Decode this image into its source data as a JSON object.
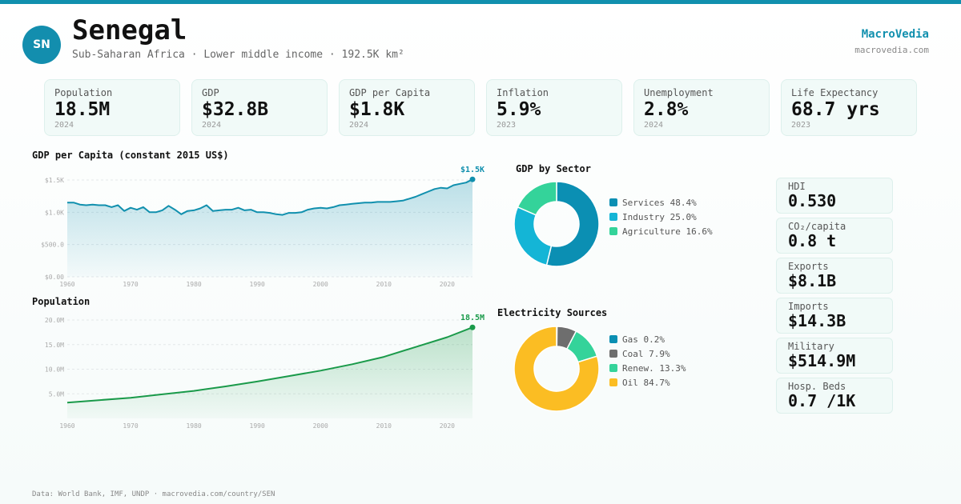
{
  "header": {
    "avatar": "SN",
    "title": "Senegal",
    "subtitle": "Sub-Saharan Africa · Lower middle income · 192.5K km²",
    "brand": "MacroVedia",
    "brand_url": "macrovedia.com",
    "accent_color": "#1190ae"
  },
  "stats": [
    {
      "label": "Population",
      "value": "18.5M",
      "year": "2024"
    },
    {
      "label": "GDP",
      "value": "$32.8B",
      "year": "2024"
    },
    {
      "label": "GDP per Capita",
      "value": "$1.8K",
      "year": "2024"
    },
    {
      "label": "Inflation",
      "value": "5.9%",
      "year": "2023"
    },
    {
      "label": "Unemployment",
      "value": "2.8%",
      "year": "2024"
    },
    {
      "label": "Life Expectancy",
      "value": "68.7 yrs",
      "year": "2023"
    }
  ],
  "side_stats": [
    {
      "label": "HDI",
      "value": "0.530"
    },
    {
      "label": "CO₂/capita",
      "value": "0.8 t"
    },
    {
      "label": "Exports",
      "value": "$8.1B"
    },
    {
      "label": "Imports",
      "value": "$14.3B"
    },
    {
      "label": "Military",
      "value": "$514.9M"
    },
    {
      "label": "Hosp. Beds",
      "value": "0.7 /1K"
    }
  ],
  "footer": "Data: World Bank, IMF, UNDP · macrovedia.com/country/SEN",
  "chart_data": [
    {
      "type": "area",
      "title": "GDP per Capita (constant 2015 US$)",
      "end_label": "$1.5K",
      "color": "#1190ae",
      "xlim": [
        1960,
        2024
      ],
      "ylim": [
        0,
        1500
      ],
      "x_ticks": [
        "1960",
        "1970",
        "1980",
        "1990",
        "2000",
        "2010",
        "2020"
      ],
      "y_ticks": [
        {
          "value": 0,
          "label": "$0.00"
        },
        {
          "value": 500,
          "label": "$500.0"
        },
        {
          "value": 1000,
          "label": "$1.0K"
        },
        {
          "value": 1500,
          "label": "$1.5K"
        }
      ],
      "x": [
        1960,
        1961,
        1962,
        1963,
        1964,
        1965,
        1966,
        1967,
        1968,
        1969,
        1970,
        1971,
        1972,
        1973,
        1974,
        1975,
        1976,
        1977,
        1978,
        1979,
        1980,
        1981,
        1982,
        1983,
        1984,
        1985,
        1986,
        1987,
        1988,
        1989,
        1990,
        1991,
        1992,
        1993,
        1994,
        1995,
        1996,
        1997,
        1998,
        1999,
        2000,
        2001,
        2002,
        2003,
        2004,
        2005,
        2006,
        2007,
        2008,
        2009,
        2010,
        2011,
        2012,
        2013,
        2014,
        2015,
        2016,
        2017,
        2018,
        2019,
        2020,
        2021,
        2022,
        2023,
        2024
      ],
      "values": [
        1150,
        1150,
        1120,
        1110,
        1120,
        1110,
        1110,
        1080,
        1110,
        1020,
        1070,
        1040,
        1080,
        1000,
        1000,
        1030,
        1100,
        1040,
        970,
        1020,
        1030,
        1060,
        1110,
        1020,
        1030,
        1040,
        1040,
        1070,
        1030,
        1040,
        1000,
        1000,
        990,
        970,
        960,
        990,
        990,
        1000,
        1040,
        1060,
        1070,
        1060,
        1080,
        1110,
        1120,
        1130,
        1140,
        1150,
        1150,
        1160,
        1160,
        1160,
        1170,
        1180,
        1210,
        1240,
        1280,
        1320,
        1360,
        1380,
        1370,
        1420,
        1440,
        1460,
        1510
      ]
    },
    {
      "type": "area",
      "title": "Population",
      "end_label": "18.5M",
      "color": "#1a9a4a",
      "xlim": [
        1960,
        2024
      ],
      "ylim": [
        0,
        20
      ],
      "x_ticks": [
        "1960",
        "1970",
        "1980",
        "1990",
        "2000",
        "2010",
        "2020"
      ],
      "y_ticks": [
        {
          "value": 5,
          "label": "5.0M"
        },
        {
          "value": 10,
          "label": "10.0M"
        },
        {
          "value": 15,
          "label": "15.0M"
        },
        {
          "value": 20,
          "label": "20.0M"
        }
      ],
      "x": [
        1960,
        1965,
        1970,
        1975,
        1980,
        1985,
        1990,
        1995,
        2000,
        2005,
        2010,
        2015,
        2020,
        2024
      ],
      "values": [
        3.2,
        3.7,
        4.2,
        4.9,
        5.6,
        6.5,
        7.5,
        8.6,
        9.7,
        11.0,
        12.5,
        14.5,
        16.5,
        18.5
      ]
    },
    {
      "type": "pie",
      "title": "GDP by Sector",
      "slices": [
        {
          "label": "Services",
          "value": 48.4,
          "legend": "Services 48.4%",
          "color": "#0b8fb3"
        },
        {
          "label": "Industry",
          "value": 25.0,
          "legend": "Industry 25.0%",
          "color": "#14b5d6"
        },
        {
          "label": "Agriculture",
          "value": 16.6,
          "legend": "Agriculture 16.6%",
          "color": "#34d39a"
        }
      ]
    },
    {
      "type": "pie",
      "title": "Electricity Sources",
      "slices": [
        {
          "label": "Gas",
          "value": 0.2,
          "legend": "Gas 0.2%",
          "color": "#0b8fb3"
        },
        {
          "label": "Coal",
          "value": 7.9,
          "legend": "Coal 7.9%",
          "color": "#6e6e6e"
        },
        {
          "label": "Renew.",
          "value": 13.3,
          "legend": "Renew. 13.3%",
          "color": "#34d39a"
        },
        {
          "label": "Oil",
          "value": 84.7,
          "legend": "Oil 84.7%",
          "color": "#fbbd23"
        }
      ]
    }
  ]
}
